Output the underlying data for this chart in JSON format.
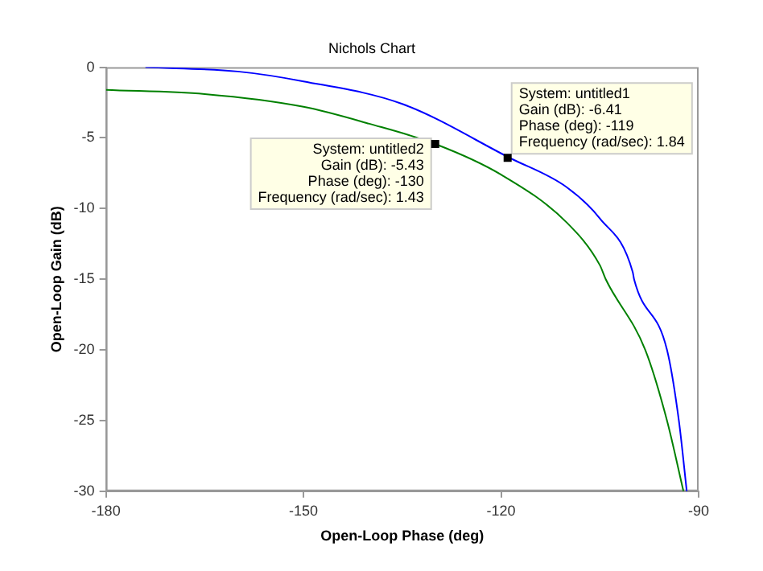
{
  "chart_data": {
    "type": "line",
    "title": "Nichols Chart",
    "xlabel": "Open-Loop Phase (deg)",
    "ylabel": "Open-Loop Gain (dB)",
    "xlim": [
      -180,
      -90
    ],
    "xticks": [
      -180,
      -150,
      -120,
      -90
    ],
    "ylim": [
      -30,
      0
    ],
    "yticks": [
      -30,
      -25,
      -20,
      -15,
      -10,
      -5,
      0
    ],
    "grid": false,
    "legend": false,
    "marker": "none",
    "line_style": "solid",
    "series": [
      {
        "color": "#0000ff",
        "x": [
          -174,
          -160,
          -150,
          -135,
          -118.7,
          -110,
          -105,
          -100,
          -99.8,
          -94.8,
          -93,
          -91.8
        ],
        "values": [
          0,
          -0.3,
          -1.0,
          -2.6,
          -6.41,
          -8.5,
          -10.7,
          -14.5,
          -15,
          -20,
          -25,
          -30
        ]
      },
      {
        "color": "#008000",
        "x": [
          -180,
          -165,
          -150,
          -140,
          -130,
          -120,
          -110,
          -105,
          -104.1,
          -98.1,
          -94.8,
          -92.3
        ],
        "values": [
          -1.6,
          -1.9,
          -2.8,
          -4.0,
          -5.43,
          -7.6,
          -11,
          -14,
          -15,
          -20,
          -25,
          -30
        ]
      }
    ],
    "annotations": [
      {
        "text": "System: untitled1\nGain (dB): -6.41\nPhase (deg): -119\nFrequency (rad/sec): 1.84",
        "x": -119,
        "y": -6.41
      },
      {
        "text": "System: untitled2\nGain (dB): -5.43\nPhase (deg): -130\nFrequency (rad/sec): 1.43",
        "x": -130,
        "y": -5.43
      }
    ]
  }
}
